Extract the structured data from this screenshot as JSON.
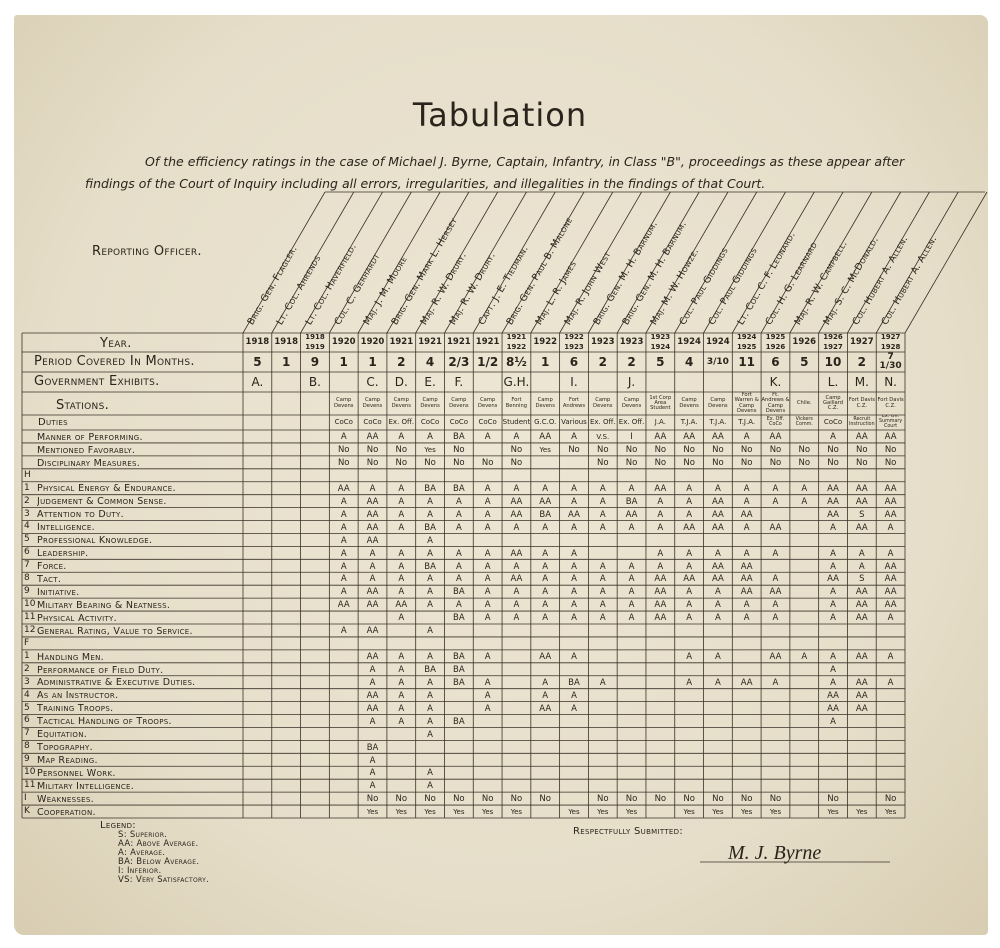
{
  "title": "Tabulation",
  "intro": "Of the efficiency ratings in the case of Michael J. Byrne, Captain, Infantry, in Class \"B\", proceedings as these appear after findings of the Court of Inquiry including all errors, irregularities, and illegalities in the findings of that Court.",
  "table": {
    "corner_label": "Reporting Officer.",
    "row_headers": {
      "year": "Year.",
      "period": "Period Covered In Months.",
      "exhibits": "Government Exhibits.",
      "stations": "Stations.",
      "duties": "Duties"
    },
    "columns": [
      {
        "officer": "Brig. Gen. Flagler.",
        "year": [
          "1918"
        ],
        "period": "5",
        "exhibit": "A."
      },
      {
        "officer": "Lt. Col. Ahrends",
        "year": [
          "1918"
        ],
        "period": "1"
      },
      {
        "officer": "Lt. Col. Haverfield.",
        "year": [
          "1918",
          "1919"
        ],
        "period": "9",
        "exhibit": "B."
      },
      {
        "officer": "Col. C. Gerhardt",
        "year": [
          "1920"
        ],
        "period": "1",
        "station": "Camp Devens",
        "duty": "CoCo"
      },
      {
        "officer": "Maj. J. M. Moore",
        "year": [
          "1920"
        ],
        "period": "1",
        "exhibit": "C.",
        "station": "Camp Devens",
        "duty": "CoCo"
      },
      {
        "officer": "Brig. Gen. Mark L. Hersey",
        "year": [
          "1921"
        ],
        "period": "2",
        "exhibit": "D.",
        "station": "Camp Devens",
        "duty": "Ex. Off."
      },
      {
        "officer": "Maj. R. W. Drury.",
        "year": [
          "1921"
        ],
        "period": "4",
        "exhibit": "E.",
        "station": "Camp Devens",
        "duty": "CoCo"
      },
      {
        "officer": "Maj. R. W. Drury.",
        "year": [
          "1921"
        ],
        "period": "2/3",
        "exhibit": "F.",
        "station": "Camp Devens",
        "duty": "CoCo"
      },
      {
        "officer": "Capt. J. E. Tiedman.",
        "year": [
          "1921"
        ],
        "period": "1/2",
        "station": "Camp Devens",
        "duty": "CoCo"
      },
      {
        "officer": "Brig. Gen. Paul B. Malone",
        "year": [
          "1921",
          "1922"
        ],
        "period": "8½",
        "exhibit": "G.H.",
        "station": "Fort Benning",
        "duty": "Student"
      },
      {
        "officer": "Maj. L. R. James",
        "year": [
          "1922"
        ],
        "period": "1",
        "station": "Camp Devens",
        "duty": "G.C.O."
      },
      {
        "officer": "Maj. R. John West",
        "year": [
          "1922",
          "1923"
        ],
        "period": "6",
        "exhibit": "I.",
        "station": "Fort Andrews",
        "duty": "Various"
      },
      {
        "officer": "Brig. Gen. M. H. Barnum.",
        "year": [
          "1923"
        ],
        "period": "2",
        "station": "Camp Devens",
        "duty": "Ex. Off."
      },
      {
        "officer": "Brig. Gen. M. H. Barnum.",
        "year": [
          "1923"
        ],
        "period": "2",
        "exhibit": "J.",
        "station": "Camp Devens",
        "duty": "Ex. Off."
      },
      {
        "officer": "Maj. M. W. Howze.",
        "year": [
          "1923",
          "1924"
        ],
        "period": "5",
        "station": "1st Corp Area Student",
        "duty": "J.A."
      },
      {
        "officer": "Col. Paul Giddings",
        "year": [
          "1924"
        ],
        "period": "4",
        "station": "Camp Devens",
        "duty": "T.J.A."
      },
      {
        "officer": "Col. Paul Giddings",
        "year": [
          "1924"
        ],
        "period": "3/10",
        "station": "Camp Devens",
        "duty": "T.J.A."
      },
      {
        "officer": "Lt. Col. C. F. Leonard.",
        "year": [
          "1924",
          "1925"
        ],
        "period": "11",
        "station": "Fort Warren & Camp Devens",
        "duty": "T.J.A."
      },
      {
        "officer": "Col. H. G. Learnard",
        "year": [
          "1925",
          "1926"
        ],
        "period": "6",
        "exhibit": "K.",
        "station": "Ft. Andrews & Camp Devens",
        "duty": "Ex. Off. CoCo"
      },
      {
        "officer": "Maj. R. W. Campbell.",
        "year": [
          "1926"
        ],
        "period": "5",
        "station": "Chile.",
        "duty": "Vickers Comm."
      },
      {
        "officer": "Maj. S. C. McDonald.",
        "year": [
          "1926",
          "1927"
        ],
        "period": "10",
        "exhibit": "L.",
        "station": "Camp Gaillard C.Z.",
        "duty": "CoCo"
      },
      {
        "officer": "Col. Hubert A. Allen.",
        "year": [
          "1927"
        ],
        "period": "2",
        "exhibit": "M.",
        "station": "Fort Davis C.Z.",
        "duty": "Recruit Instruction"
      },
      {
        "officer": "Col. Hubert A. Allen.",
        "year": [
          "1927",
          "1928"
        ],
        "period": "7 1/30",
        "exhibit": "N.",
        "station": "Fort Davis C.Z.",
        "duty": "Ex. Off. Summary Court"
      }
    ],
    "rows": [
      {
        "label": "Manner of Performing.",
        "cells": [
          null,
          null,
          null,
          "A",
          "AA",
          "A",
          "A",
          "BA",
          "A",
          "A",
          "AA",
          "A",
          "V.S.",
          "I",
          "AA",
          "AA",
          "AA",
          "A",
          "AA",
          null,
          "A",
          "AA",
          "AA"
        ]
      },
      {
        "label": "Mentioned Favorably.",
        "cells": [
          null,
          null,
          null,
          "No",
          "No",
          "No",
          "Yes",
          "No",
          null,
          "No",
          "Yes",
          "No",
          "No",
          "No",
          "No",
          "No",
          "No",
          "No",
          "No",
          "No",
          "No",
          "No",
          "No"
        ]
      },
      {
        "label": "Disciplinary Measures.",
        "cells": [
          null,
          null,
          null,
          "No",
          "No",
          "No",
          "No",
          "No",
          "No",
          "No",
          null,
          null,
          "No",
          "No",
          "No",
          "No",
          "No",
          "No",
          "No",
          "No",
          "No",
          "No",
          "No"
        ]
      },
      {
        "num": "H"
      },
      {
        "num": "1",
        "label": "Physical Energy & Endurance.",
        "cells": [
          null,
          null,
          null,
          "AA",
          "A",
          "A",
          "BA",
          "BA",
          "A",
          "A",
          "A",
          "A",
          "A",
          "A",
          "AA",
          "A",
          "A",
          "A",
          "A",
          "A",
          "AA",
          "AA",
          "AA"
        ]
      },
      {
        "num": "2",
        "label": "Judgement & Common Sense.",
        "cells": [
          null,
          null,
          null,
          "A",
          "AA",
          "A",
          "A",
          "A",
          "A",
          "AA",
          "AA",
          "A",
          "A",
          "BA",
          "A",
          "A",
          "AA",
          "A",
          "A",
          "A",
          "AA",
          "AA",
          "AA"
        ]
      },
      {
        "num": "3",
        "label": "Attention to Duty.",
        "cells": [
          null,
          null,
          null,
          "A",
          "AA",
          "A",
          "A",
          "A",
          "A",
          "AA",
          "BA",
          "AA",
          "A",
          "AA",
          "A",
          "A",
          "AA",
          "AA",
          null,
          null,
          "AA",
          "S",
          "AA"
        ]
      },
      {
        "num": "4",
        "label": "Intelligence.",
        "cells": [
          null,
          null,
          null,
          "A",
          "AA",
          "A",
          "BA",
          "A",
          "A",
          "A",
          "A",
          "A",
          "A",
          "A",
          "A",
          "AA",
          "AA",
          "A",
          "AA",
          null,
          "A",
          "AA",
          "A"
        ]
      },
      {
        "num": "5",
        "label": "Professional Knowledge.",
        "cells": [
          null,
          null,
          null,
          "A",
          "AA",
          null,
          "A",
          null,
          null,
          null,
          null,
          null,
          null,
          null,
          null,
          null,
          null,
          null,
          null,
          null,
          null,
          null,
          null
        ]
      },
      {
        "num": "6",
        "label": "Leadership.",
        "cells": [
          null,
          null,
          null,
          "A",
          "A",
          "A",
          "A",
          "A",
          "A",
          "AA",
          "A",
          "A",
          null,
          null,
          "A",
          "A",
          "A",
          "A",
          "A",
          null,
          "A",
          "A",
          "A"
        ]
      },
      {
        "num": "7",
        "label": "Force.",
        "cells": [
          null,
          null,
          null,
          "A",
          "A",
          "A",
          "BA",
          "A",
          "A",
          "A",
          "A",
          "A",
          "A",
          "A",
          "A",
          "A",
          "AA",
          "AA",
          null,
          null,
          "A",
          "A",
          "AA"
        ]
      },
      {
        "num": "8",
        "label": "Tact.",
        "cells": [
          null,
          null,
          null,
          "A",
          "A",
          "A",
          "A",
          "A",
          "A",
          "AA",
          "A",
          "A",
          "A",
          "A",
          "AA",
          "AA",
          "AA",
          "AA",
          "A",
          null,
          "AA",
          "S",
          "AA"
        ]
      },
      {
        "num": "9",
        "label": "Initiative.",
        "cells": [
          null,
          null,
          null,
          "A",
          "AA",
          "A",
          "A",
          "BA",
          "A",
          "A",
          "A",
          "A",
          "A",
          "A",
          "AA",
          "A",
          "A",
          "AA",
          "AA",
          null,
          "A",
          "AA",
          "AA"
        ]
      },
      {
        "num": "10",
        "label": "Military Bearing & Neatness.",
        "cells": [
          null,
          null,
          null,
          "AA",
          "AA",
          "AA",
          "A",
          "A",
          "A",
          "A",
          "A",
          "A",
          "A",
          "A",
          "AA",
          "A",
          "A",
          "A",
          "A",
          null,
          "A",
          "AA",
          "AA"
        ]
      },
      {
        "num": "11",
        "label": "Physical Activity.",
        "cells": [
          null,
          null,
          null,
          null,
          null,
          "A",
          null,
          "BA",
          "A",
          "A",
          "A",
          "A",
          "A",
          "A",
          "AA",
          "A",
          "A",
          "A",
          "A",
          null,
          "A",
          "AA",
          "A"
        ]
      },
      {
        "num": "12",
        "label": "General Rating, Value to Service.",
        "cells": [
          null,
          null,
          null,
          "A",
          "AA",
          null,
          "A",
          null,
          null,
          null,
          null,
          null,
          null,
          null,
          null,
          null,
          null,
          null,
          null,
          null,
          null,
          null,
          null
        ]
      },
      {
        "num": "F"
      },
      {
        "num": "1",
        "label": "Handling Men.",
        "cells": [
          null,
          null,
          null,
          null,
          "AA",
          "A",
          "A",
          "BA",
          "A",
          null,
          "AA",
          "A",
          null,
          null,
          null,
          "A",
          "A",
          null,
          "AA",
          "A",
          "A",
          "AA",
          "A"
        ]
      },
      {
        "num": "2",
        "label": "Performance of Field Duty.",
        "cells": [
          null,
          null,
          null,
          null,
          "A",
          "A",
          "BA",
          "BA",
          null,
          null,
          null,
          null,
          null,
          null,
          null,
          null,
          null,
          null,
          null,
          null,
          "A",
          null,
          null
        ]
      },
      {
        "num": "3",
        "label": "Administrative & Executive Duties.",
        "cells": [
          null,
          null,
          null,
          null,
          "A",
          "A",
          "A",
          "BA",
          "A",
          null,
          "A",
          "BA",
          "A",
          null,
          null,
          "A",
          "A",
          "AA",
          "A",
          null,
          "A",
          "AA",
          "A"
        ]
      },
      {
        "num": "4",
        "label": "As an Instructor.",
        "cells": [
          null,
          null,
          null,
          null,
          "AA",
          "A",
          "A",
          null,
          "A",
          null,
          "A",
          "A",
          null,
          null,
          null,
          null,
          null,
          null,
          null,
          null,
          "AA",
          "AA",
          null
        ]
      },
      {
        "num": "5",
        "label": "Training Troops.",
        "cells": [
          null,
          null,
          null,
          null,
          "AA",
          "A",
          "A",
          null,
          "A",
          null,
          "AA",
          "A",
          null,
          null,
          null,
          null,
          null,
          null,
          null,
          null,
          "AA",
          "AA",
          null
        ]
      },
      {
        "num": "6",
        "label": "Tactical Handling of Troops.",
        "cells": [
          null,
          null,
          null,
          null,
          "A",
          "A",
          "A",
          "BA",
          null,
          null,
          null,
          null,
          null,
          null,
          null,
          null,
          null,
          null,
          null,
          null,
          "A",
          null,
          null
        ]
      },
      {
        "num": "7",
        "label": "Equitation.",
        "cells": [
          null,
          null,
          null,
          null,
          null,
          null,
          "A",
          null,
          null,
          null,
          null,
          null,
          null,
          null,
          null,
          null,
          null,
          null,
          null,
          null,
          null,
          null,
          null
        ]
      },
      {
        "num": "8",
        "label": "Topography.",
        "cells": [
          null,
          null,
          null,
          null,
          "BA",
          null,
          null,
          null,
          null,
          null,
          null,
          null,
          null,
          null,
          null,
          null,
          null,
          null,
          null,
          null,
          null,
          null,
          null
        ]
      },
      {
        "num": "9",
        "label": "Map Reading.",
        "cells": [
          null,
          null,
          null,
          null,
          "A",
          null,
          null,
          null,
          null,
          null,
          null,
          null,
          null,
          null,
          null,
          null,
          null,
          null,
          null,
          null,
          null,
          null,
          null
        ]
      },
      {
        "num": "10",
        "label": "Personnel Work.",
        "cells": [
          null,
          null,
          null,
          null,
          "A",
          null,
          "A",
          null,
          null,
          null,
          null,
          null,
          null,
          null,
          null,
          null,
          null,
          null,
          null,
          null,
          null,
          null,
          null
        ]
      },
      {
        "num": "11",
        "label": "Military Intelligence.",
        "cells": [
          null,
          null,
          null,
          null,
          "A",
          null,
          "A",
          null,
          null,
          null,
          null,
          null,
          null,
          null,
          null,
          null,
          null,
          null,
          null,
          null,
          null,
          null,
          null
        ]
      },
      {
        "num": "I",
        "label": "Weaknesses.",
        "cells": [
          null,
          null,
          null,
          null,
          "No",
          "No",
          "No",
          "No",
          "No",
          "No",
          "No",
          null,
          "No",
          "No",
          "No",
          "No",
          "No",
          "No",
          "No",
          null,
          "No",
          null,
          "No"
        ]
      },
      {
        "num": "K",
        "label": "Cooperation.",
        "cells": [
          null,
          null,
          null,
          null,
          "Yes",
          "Yes",
          "Yes",
          "Yes",
          "Yes",
          "Yes",
          null,
          "Yes",
          "Yes",
          "Yes",
          null,
          "Yes",
          "Yes",
          "Yes",
          "Yes",
          null,
          "Yes",
          "Yes",
          "Yes"
        ]
      }
    ]
  },
  "legend": {
    "title": "Legend:",
    "items": [
      "S: Superior.",
      "AA: Above Average.",
      "A: Average.",
      "BA: Below Average.",
      "I: Inferior.",
      "VS: Very Satisfactory."
    ]
  },
  "submitted": "Respectfully Submitted:",
  "signature": "M. J. Byrne"
}
